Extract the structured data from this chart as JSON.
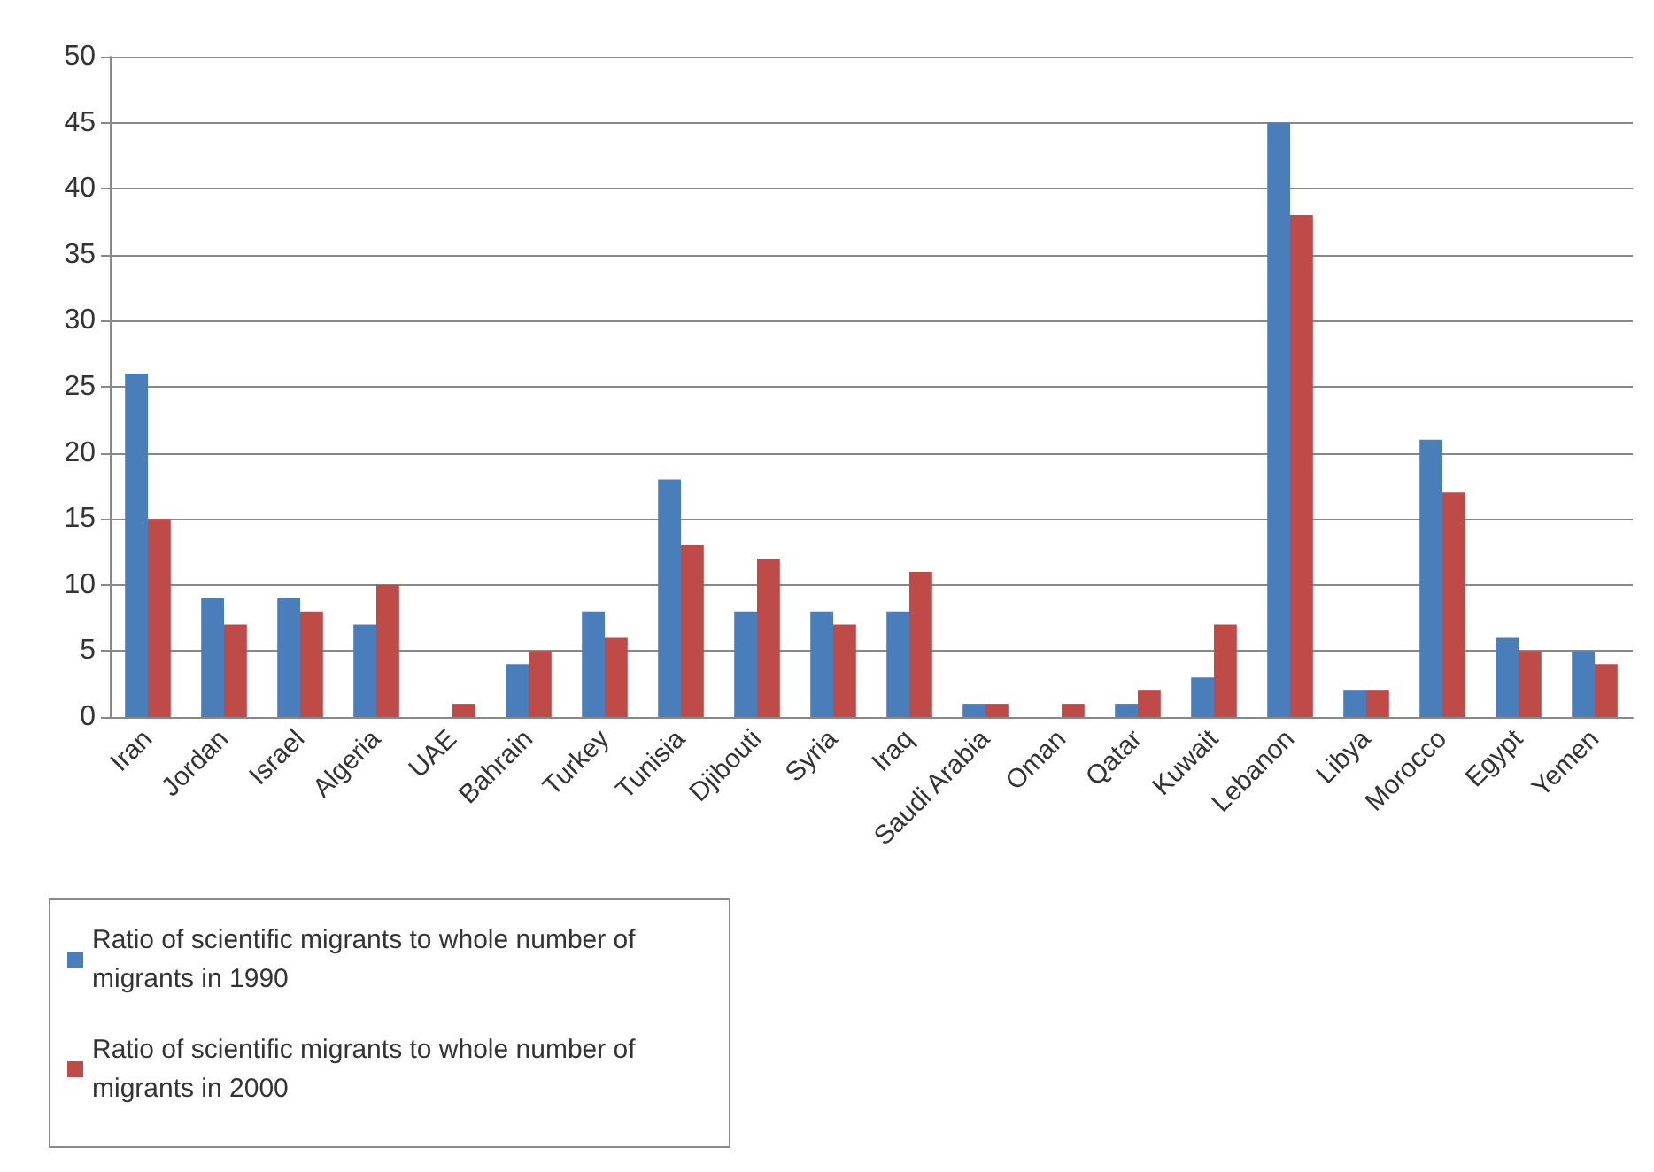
{
  "chart_data": {
    "type": "bar",
    "categories": [
      "Iran",
      "Jordan",
      "Israel",
      "Algeria",
      "UAE",
      "Bahrain",
      "Turkey",
      "Tunisia",
      "Djibouti",
      "Syria",
      "Iraq",
      "Saudi Arabia",
      "Oman",
      "Qatar",
      "Kuwait",
      "Lebanon",
      "Libya",
      "Morocco",
      "Egypt",
      "Yemen"
    ],
    "series": [
      {
        "name": "Ratio of scientific migrants to whole number of migrants in 1990",
        "color": "#4a7ebb",
        "values": [
          26,
          9,
          9,
          7,
          0,
          4,
          8,
          18,
          8,
          8,
          8,
          1,
          0,
          1,
          3,
          45,
          2,
          21,
          6,
          5
        ]
      },
      {
        "name": "Ratio of scientific migrants to whole number of migrants in 2000",
        "color": "#be4b48",
        "values": [
          15,
          7,
          8,
          10,
          1,
          5,
          6,
          13,
          12,
          7,
          11,
          1,
          1,
          2,
          7,
          38,
          2,
          17,
          5,
          4
        ]
      }
    ],
    "ylim": [
      0,
      50
    ],
    "yticks": [
      0,
      5,
      10,
      15,
      20,
      25,
      30,
      35,
      40,
      45,
      50
    ],
    "grid": "y",
    "legend": "bottom left"
  }
}
